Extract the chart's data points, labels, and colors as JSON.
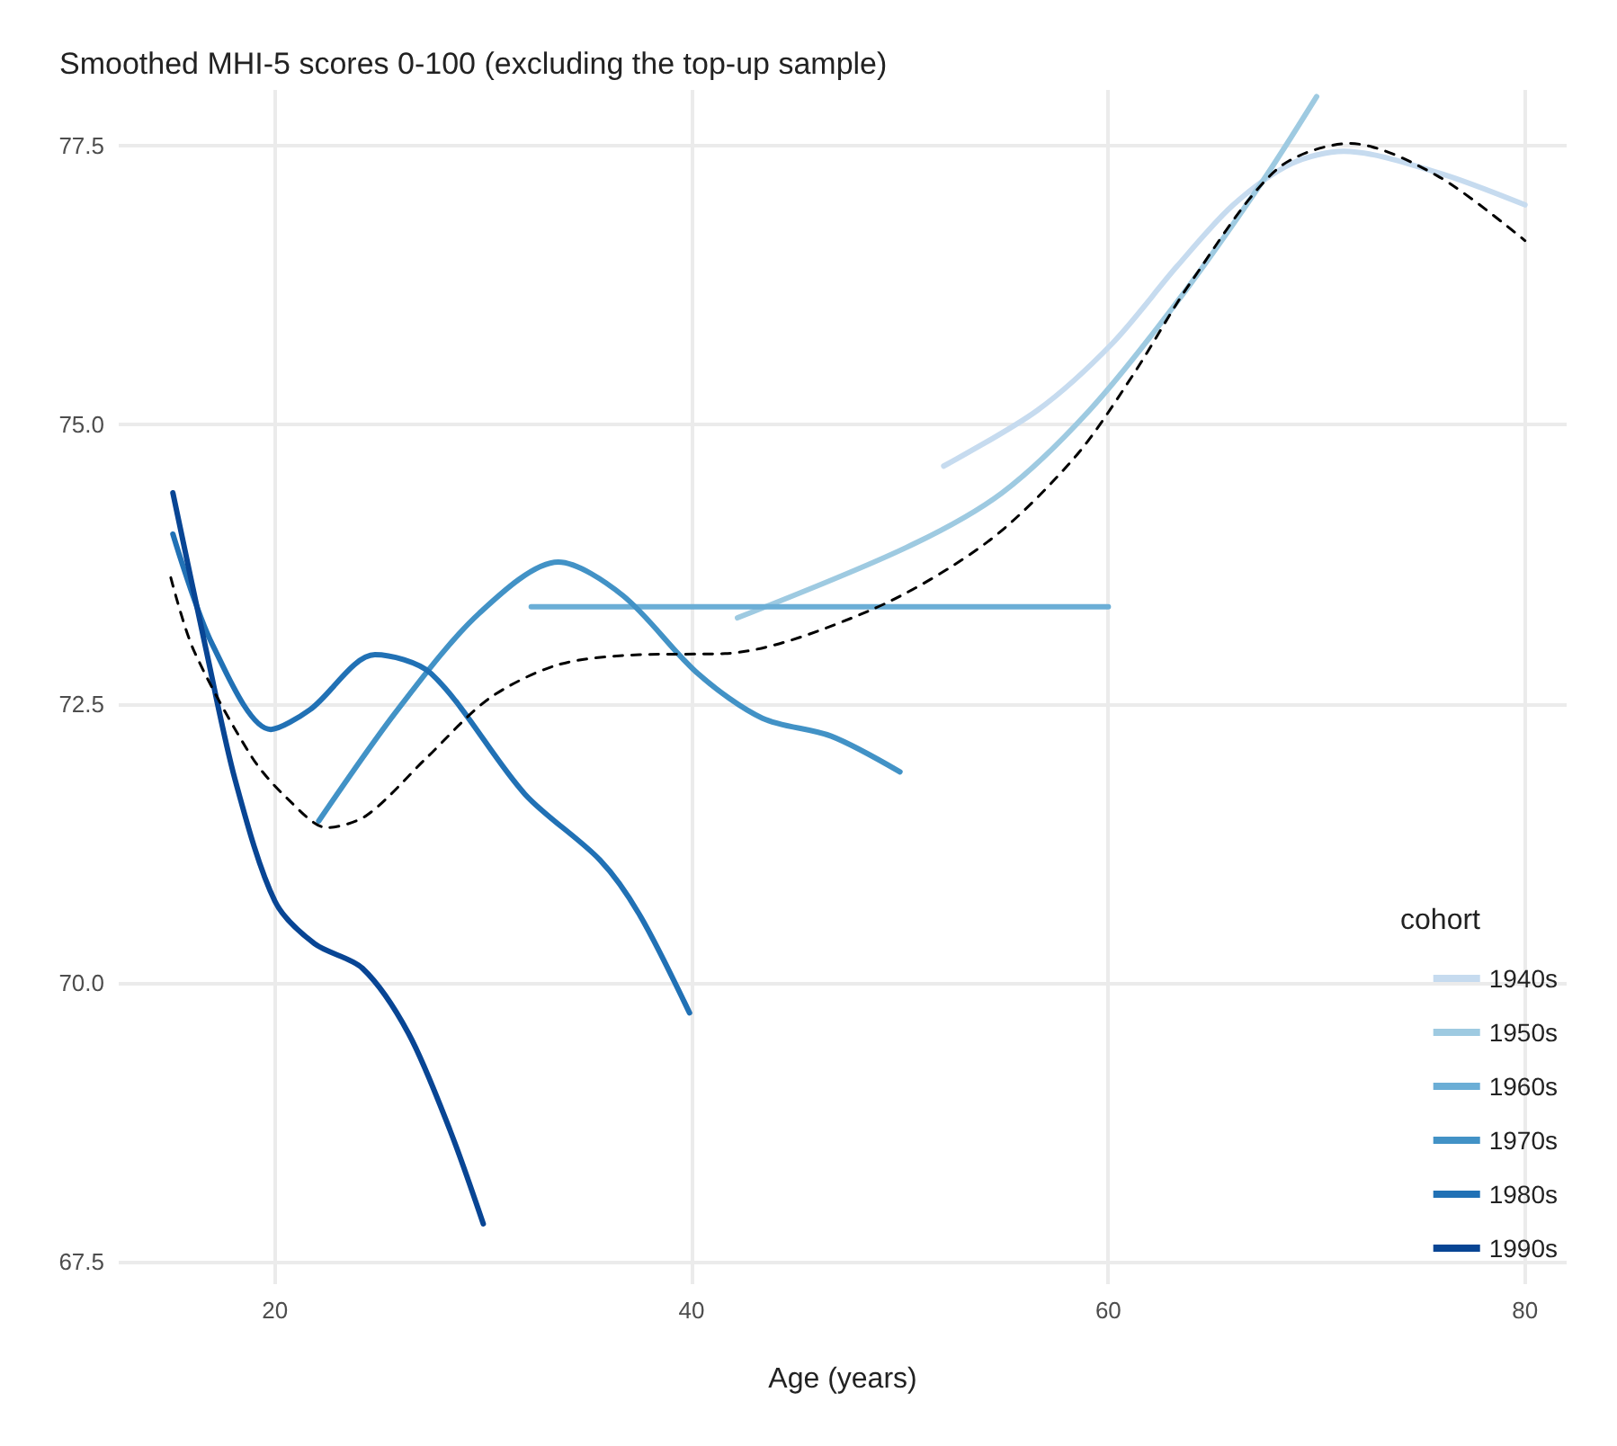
{
  "chart_data": {
    "type": "line",
    "title": "Smoothed MHI-5 scores 0-100 (excluding the top-up sample)",
    "xlabel": "Age (years)",
    "legend_title": "cohort",
    "legend": "bottom right",
    "grid": true,
    "marker": "none",
    "line_style": "solid",
    "xlim": [
      12.5,
      82
    ],
    "xticks": [
      20,
      40,
      60,
      80
    ],
    "ylim": [
      67.3,
      78
    ],
    "yticks": [
      67.5,
      {
        "value": 70,
        "label": "70.0"
      },
      72.5,
      {
        "value": 75,
        "label": "75.0"
      },
      77.5
    ],
    "series": [
      {
        "name": "1940s",
        "color": "#c6dbef",
        "x": [
          52.1,
          56.6,
          60.2,
          63.3,
          66.0,
          68.8,
          71.3,
          75.8,
          80
        ],
        "values": [
          74.63,
          75.13,
          75.73,
          76.42,
          76.97,
          77.34,
          77.45,
          77.26,
          76.97
        ]
      },
      {
        "name": "1950s",
        "color": "#9ecae1",
        "x": [
          42.2,
          50.3,
          54.9,
          59.1,
          63.3,
          67.4,
          70.0
        ],
        "values": [
          73.27,
          73.9,
          74.39,
          75.13,
          76.1,
          77.18,
          77.94
        ]
      },
      {
        "name": "1960s",
        "color": "#6baed6",
        "x": [
          32.3,
          60
        ],
        "values": [
          73.37,
          73.37
        ]
      },
      {
        "name": "1970s",
        "color": "#4292c6",
        "x": [
          22.1,
          25.9,
          29.8,
          33.6,
          36.7,
          40.3,
          43.4,
          46.7,
          50
        ],
        "values": [
          71.45,
          72.45,
          73.31,
          73.77,
          73.47,
          72.77,
          72.37,
          72.21,
          71.89
        ]
      },
      {
        "name": "1980s",
        "color": "#2171b5",
        "x": [
          15.1,
          17,
          19.8,
          21.7,
          24.8,
          27.5,
          32,
          35.6,
          37.5,
          39.9
        ],
        "values": [
          74.02,
          73.03,
          72.27,
          72.45,
          72.94,
          72.77,
          71.69,
          71.1,
          70.61,
          69.73
        ]
      },
      {
        "name": "1990s",
        "color": "#084594",
        "x": [
          15.1,
          16.7,
          18.1,
          20,
          21.9,
          24.2,
          26.4,
          28.4,
          30
        ],
        "values": [
          74.39,
          72.98,
          71.81,
          70.73,
          70.35,
          70.13,
          69.55,
          68.68,
          67.84
        ]
      },
      {
        "color": "#000000",
        "line_style": "dashed",
        "x": [
          15,
          16.1,
          18.9,
          20.6,
          22.5,
          24.4,
          27.3,
          30.3,
          33.6,
          37.5,
          41.6,
          48.6,
          54.2,
          58.4,
          61.2,
          63.9,
          68.1,
          71.6,
          75.8,
          80
        ],
        "values": [
          73.63,
          72.98,
          72.02,
          71.65,
          71.39,
          71.5,
          72.02,
          72.55,
          72.85,
          72.94,
          72.95,
          73.34,
          73.95,
          74.71,
          75.45,
          76.26,
          77.29,
          77.52,
          77.23,
          76.65
        ]
      }
    ]
  }
}
